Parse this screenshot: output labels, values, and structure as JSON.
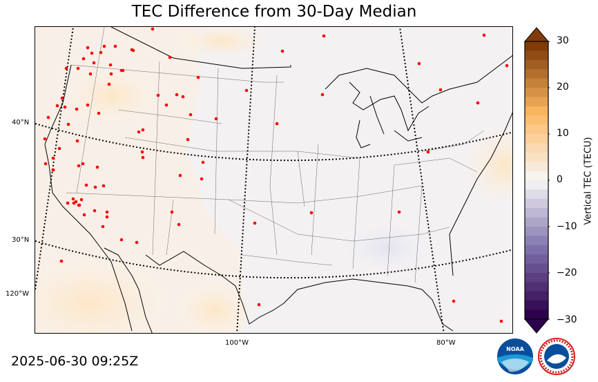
{
  "title": "TEC Difference from 30-Day Median",
  "timestamp": "2025-06-30 09:25Z",
  "lat_labels": [
    "40°N",
    "30°N",
    "120°W"
  ],
  "lon_labels": [
    "100°W",
    "80°W"
  ],
  "colorbar": {
    "label": "Vertical TEC (TECU)",
    "ticks": [
      "30",
      "20",
      "10",
      "0",
      "−10",
      "−20",
      "−30"
    ],
    "min": -30,
    "max": 30,
    "colors": {
      "neg_extreme": "#2d004b",
      "neg_mid": "#8073ac",
      "neutral": "#f7f7f7",
      "pos_mid": "#fdb863",
      "pos_extreme": "#7f3b08"
    }
  },
  "stations_color": "#ff0000",
  "logos": [
    "noaa-logo",
    "national-weather-service-logo"
  ],
  "logo_text": {
    "noaa": "NOAA"
  }
}
